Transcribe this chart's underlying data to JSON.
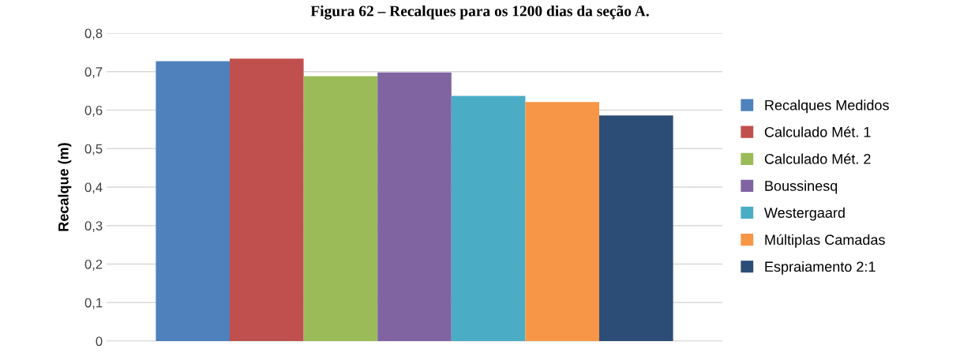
{
  "chart_data": {
    "type": "bar",
    "title": "Figura 62 – Recalques para os 1200 dias da seção A.",
    "ylabel": "Recalque (m)",
    "categories": [
      null
    ],
    "series": [
      {
        "name": "Recalques Medidos",
        "color": "#4f81bd",
        "values": [
          0.727
        ]
      },
      {
        "name": "Calculado Mét. 1",
        "color": "#c0504d",
        "values": [
          0.734
        ]
      },
      {
        "name": "Calculado Mét. 2",
        "color": "#9bbb59",
        "values": [
          0.688
        ]
      },
      {
        "name": "Boussinesq",
        "color": "#8064a2",
        "values": [
          0.698
        ]
      },
      {
        "name": "Westergaard",
        "color": "#4bacc6",
        "values": [
          0.637
        ]
      },
      {
        "name": "Múltiplas Camadas",
        "color": "#f79646",
        "values": [
          0.621
        ]
      },
      {
        "name": "Espraiamento 2:1",
        "color": "#2c4d75",
        "values": [
          0.586
        ]
      }
    ],
    "ylim": [
      0,
      0.8
    ],
    "yticks": [
      {
        "value": 0,
        "label": "0"
      },
      {
        "value": 0.1,
        "label": "0,1"
      },
      {
        "value": 0.2,
        "label": "0,2"
      },
      {
        "value": 0.3,
        "label": "0,3"
      },
      {
        "value": 0.4,
        "label": "0,4"
      },
      {
        "value": 0.5,
        "label": "0,5"
      },
      {
        "value": 0.6,
        "label": "0,6"
      },
      {
        "value": 0.7,
        "label": "0,7"
      },
      {
        "value": 0.8,
        "label": "0,8"
      }
    ],
    "grid": "y",
    "legend": "right"
  }
}
